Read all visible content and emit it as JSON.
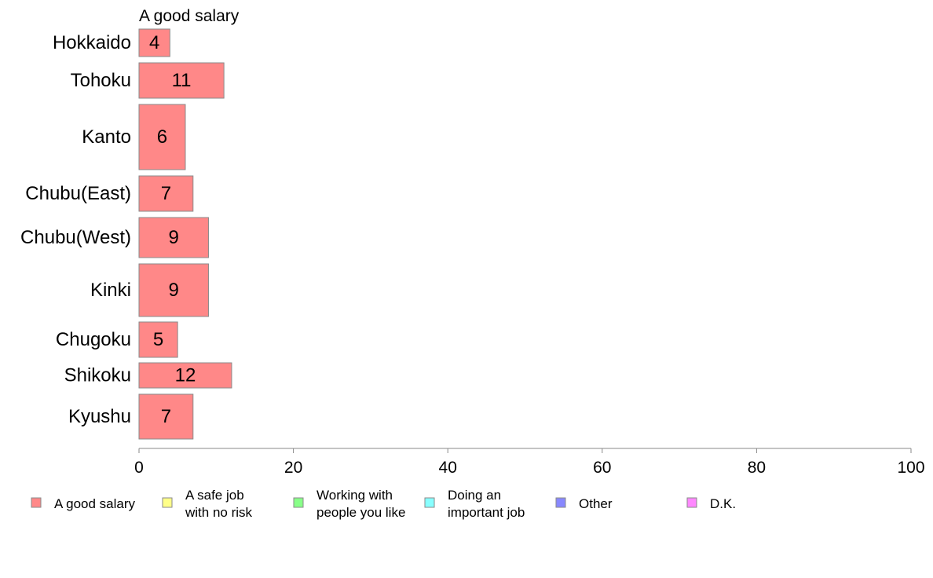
{
  "chart_data": {
    "type": "bar",
    "orientation": "horizontal",
    "series_caption": "A good salary",
    "categories": [
      "Hokkaido",
      "Tohoku",
      "Kanto",
      "Chubu(East)",
      "Chubu(West)",
      "Kinki",
      "Chugoku",
      "Shikoku",
      "Kyushu"
    ],
    "series": [
      {
        "name": "A good salary",
        "color": "#ff8888",
        "values": [
          4,
          11,
          6,
          7,
          9,
          9,
          5,
          12,
          7
        ]
      }
    ],
    "value_labels": [
      "4",
      "11",
      "6",
      "7",
      "9",
      "9",
      "5",
      "12",
      "7"
    ],
    "xlim": [
      0,
      100
    ],
    "xticks": [
      0,
      20,
      40,
      60,
      80,
      100
    ],
    "xtick_labels": [
      "0",
      "20",
      "40",
      "60",
      "80",
      "100"
    ],
    "grid": false,
    "legend_position": "bottom",
    "legend": [
      {
        "lines": [
          "A good salary"
        ],
        "color": "#ff8888"
      },
      {
        "lines": [
          "A safe job",
          "with no risk"
        ],
        "color": "#ffff88"
      },
      {
        "lines": [
          "Working with",
          "people you like"
        ],
        "color": "#88ff88"
      },
      {
        "lines": [
          "Doing an",
          "important job"
        ],
        "color": "#88ffff"
      },
      {
        "lines": [
          "Other"
        ],
        "color": "#8888ff"
      },
      {
        "lines": [
          "D.K."
        ],
        "color": "#ff88ff"
      }
    ]
  }
}
